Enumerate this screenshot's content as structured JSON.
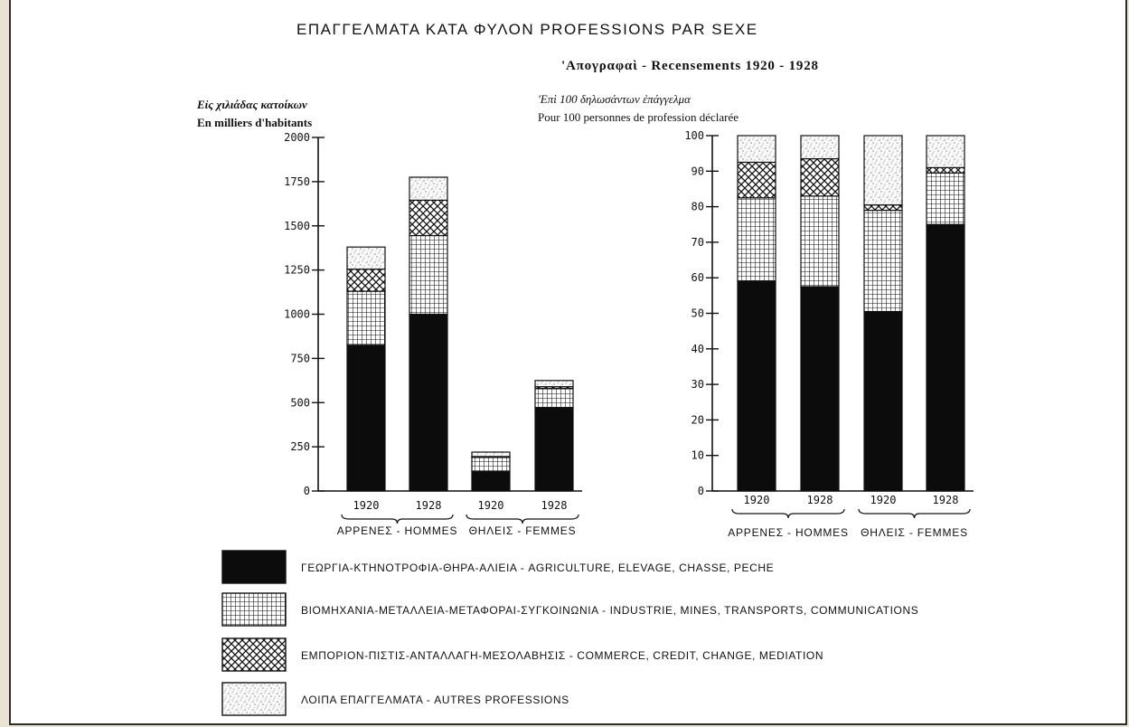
{
  "header": {
    "title": "ΕΠΑΓΓΕΛΜΑΤΑ ΚΑΤΑ ΦΥΛΟΝ   PROFESSIONS PAR SEXE",
    "subtitle": "'Απογραφαὶ - Recensements 1920 - 1928"
  },
  "colors": {
    "page_background": "#e8e3d2",
    "paper": "#ffffff",
    "ink": "#111111"
  },
  "legend": {
    "items": [
      {
        "key": "agriculture",
        "pattern": "solid-black",
        "label": "ΓΕΩΡΓΙΑ-ΚΤΗΝΟΤΡΟΦΙΑ-ΘΗΡΑ-ΑΛΙΕΙΑ - AGRICULTURE, ELEVAGE, CHASSE, PECHE"
      },
      {
        "key": "industry",
        "pattern": "grid",
        "label": "ΒΙΟΜΗΧΑΝΙΑ-ΜΕΤΑΛΛΕΙΑ-ΜΕΤΑΦΟΡΑΙ-ΣΥΓΚΟΙΝΩΝΙΑ - INDUSTRIE, MINES, TRANSPORTS, COMMUNICATIONS"
      },
      {
        "key": "commerce",
        "pattern": "crosshatch",
        "label": "ΕΜΠΟΡΙΟΝ-ΠΙΣΤΙΣ-ΑΝΤΑΛΛΑΓΗ-ΜΕΣΟΛΑΒΗΣΙΣ - COMMERCE, CREDIT, CHANGE, MEDIATION"
      },
      {
        "key": "other",
        "pattern": "stipple",
        "label": "ΛΟΙΠΑ ΕΠΑΓΓΕΛΜΑΤΑ - AUTRES PROFESSIONS"
      }
    ]
  },
  "chart_data": [
    {
      "type": "bar",
      "stacked": true,
      "ylabel_greek": "Εἰς χιλιάδας κατοίκων",
      "ylabel_french": "En milliers d'habitants",
      "ylim": [
        0,
        2000
      ],
      "yticks": [
        0,
        250,
        500,
        750,
        1000,
        1250,
        1500,
        1750,
        2000
      ],
      "categories": [
        "1920",
        "1928",
        "1920",
        "1928"
      ],
      "groups": [
        {
          "label": "ΑΡΡΕΝΕΣ - HOMMES",
          "categories": [
            0,
            1
          ]
        },
        {
          "label": "ΘΗΛΕΙΣ - FEMMES",
          "categories": [
            2,
            3
          ]
        }
      ],
      "series": [
        {
          "name": "ΓΕΩΡΓΙΑ-ΚΤΗΝΟΤΡΟΦΙΑ-ΘΗΡΑ-ΑΛΙΕΙΑ - AGRICULTURE, ELEVAGE, CHASSE, PECHE",
          "key": "agriculture",
          "values": [
            825,
            1000,
            110,
            470
          ]
        },
        {
          "name": "ΒΙΟΜΗΧΑΝΙΑ-ΜΕΤΑΛΛΕΙΑ-ΜΕΤΑΦΟΡΑΙ-ΣΥΓΚΟΙΝΩΝΙΑ - INDUSTRIE, MINES, TRANSPORTS, COMMUNICATIONS",
          "key": "industry",
          "values": [
            305,
            445,
            80,
            110
          ]
        },
        {
          "name": "ΕΜΠΟΡΙΟΝ-ΠΙΣΤΙΣ-ΑΝΤΑΛΛΑΓΗ-ΜΕΣΟΛΑΒΗΣΙΣ - COMMERCE, CREDIT, CHANGE, MEDIATION",
          "key": "commerce",
          "values": [
            125,
            200,
            5,
            10
          ]
        },
        {
          "name": "ΛΟΙΠΑ ΕΠΑΓΓΕΛΜΑΤΑ - AUTRES PROFESSIONS",
          "key": "other",
          "values": [
            125,
            130,
            25,
            35
          ]
        }
      ]
    },
    {
      "type": "bar",
      "stacked": true,
      "ylabel_greek": "'Επὶ 100 δηλωσάντων ἐπάγγελμα",
      "ylabel_french": "Pour 100 personnes de profession déclarée",
      "ylim": [
        0,
        100
      ],
      "yticks": [
        0,
        10,
        20,
        30,
        40,
        50,
        60,
        70,
        80,
        90,
        100
      ],
      "categories": [
        "1920",
        "1928",
        "1920",
        "1928"
      ],
      "groups": [
        {
          "label": "ΑΡΡΕΝΕΣ - HOMMES",
          "categories": [
            0,
            1
          ]
        },
        {
          "label": "ΘΗΛΕΙΣ - FEMMES",
          "categories": [
            2,
            3
          ]
        }
      ],
      "series": [
        {
          "name": "ΓΕΩΡΓΙΑ-ΚΤΗΝΟΤΡΟΦΙΑ-ΘΗΡΑ-ΑΛΙΕΙΑ - AGRICULTURE, ELEVAGE, CHASSE, PECHE",
          "key": "agriculture",
          "values": [
            59,
            57.5,
            50.5,
            75
          ]
        },
        {
          "name": "ΒΙΟΜΗΧΑΝΙΑ-ΜΕΤΑΛΛΕΙΑ-ΜΕΤΑΦΟΡΑΙ-ΣΥΓΚΟΙΝΩΝΙΑ - INDUSTRIE, MINES, TRANSPORTS, COMMUNICATIONS",
          "key": "industry",
          "values": [
            23.5,
            25.5,
            28.5,
            14.5
          ]
        },
        {
          "name": "ΕΜΠΟΡΙΟΝ-ΠΙΣΤΙΣ-ΑΝΤΑΛΛΑΓΗ-ΜΕΣΟΛΑΒΗΣΙΣ - COMMERCE, CREDIT, CHANGE, MEDIATION",
          "key": "commerce",
          "values": [
            10,
            10.5,
            1.5,
            1.5
          ]
        },
        {
          "name": "ΛΟΙΠΑ ΕΠΑΓΓΕΛΜΑΤΑ - AUTRES PROFESSIONS",
          "key": "other",
          "values": [
            7.5,
            6.5,
            19.5,
            9
          ]
        }
      ]
    }
  ]
}
